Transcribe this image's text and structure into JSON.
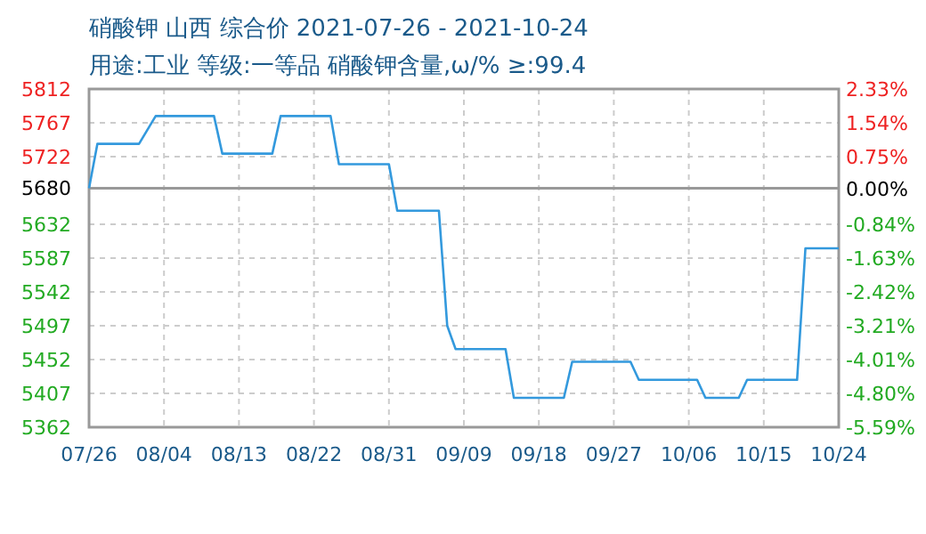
{
  "chart_data": {
    "type": "line",
    "title": "硝酸钾 山西 综合价 2021-07-26 - 2021-10-24",
    "subtitle": "用途:工业 等级:一等品 硝酸钾含量,ω/% ≥:99.4",
    "x": [
      "2021-07-26",
      "2021-07-27",
      "2021-08-01",
      "2021-08-03",
      "2021-08-10",
      "2021-08-11",
      "2021-08-17",
      "2021-08-18",
      "2021-08-24",
      "2021-08-25",
      "2021-08-31",
      "2021-09-01",
      "2021-09-06",
      "2021-09-07",
      "2021-09-08",
      "2021-09-14",
      "2021-09-15",
      "2021-09-21",
      "2021-09-22",
      "2021-09-29",
      "2021-09-30",
      "2021-10-07",
      "2021-10-08",
      "2021-10-12",
      "2021-10-13",
      "2021-10-19",
      "2021-10-20",
      "2021-10-24"
    ],
    "series": [
      {
        "color": "#3399dd",
        "values": [
          5680,
          5739,
          5739,
          5776,
          5776,
          5726,
          5726,
          5776,
          5776,
          5712,
          5712,
          5650,
          5650,
          5497,
          5466,
          5466,
          5401,
          5401,
          5449,
          5449,
          5425,
          5425,
          5401,
          5401,
          5425,
          5425,
          5600,
          5600
        ]
      }
    ],
    "xlim": [
      "2021-07-26",
      "2021-10-24"
    ],
    "xticks": [
      {
        "value": "2021-07-26",
        "label": "07/26"
      },
      {
        "value": "2021-08-04",
        "label": "08/04"
      },
      {
        "value": "2021-08-13",
        "label": "08/13"
      },
      {
        "value": "2021-08-22",
        "label": "08/22"
      },
      {
        "value": "2021-08-31",
        "label": "08/31"
      },
      {
        "value": "2021-09-09",
        "label": "09/09"
      },
      {
        "value": "2021-09-18",
        "label": "09/18"
      },
      {
        "value": "2021-09-27",
        "label": "09/27"
      },
      {
        "value": "2021-10-06",
        "label": "10/06"
      },
      {
        "value": "2021-10-15",
        "label": "10/15"
      },
      {
        "value": "2021-10-24",
        "label": "10/24"
      }
    ],
    "ylim": [
      5362,
      5812
    ],
    "yticks": [
      5812,
      5767,
      5722,
      5680,
      5632,
      5587,
      5542,
      5497,
      5452,
      5407,
      5362
    ],
    "y2lim": [
      -5.59,
      2.33
    ],
    "y2ticks": [
      {
        "value": 2.33,
        "label": "2.33%"
      },
      {
        "value": 1.54,
        "label": "1.54%"
      },
      {
        "value": 0.75,
        "label": "0.75%"
      },
      {
        "value": 0,
        "label": "0.00%"
      },
      {
        "value": -0.84,
        "label": "-0.84%"
      },
      {
        "value": -1.63,
        "label": "-1.63%"
      },
      {
        "value": -2.42,
        "label": "-2.42%"
      },
      {
        "value": -3.21,
        "label": "-3.21%"
      },
      {
        "value": -4.01,
        "label": "-4.01%"
      },
      {
        "value": -4.8,
        "label": "-4.80%"
      },
      {
        "value": -5.59,
        "label": "-5.59%"
      }
    ],
    "ref_lines": [
      {
        "axis": "y",
        "value": 5680,
        "color": "#999999"
      }
    ],
    "grid": true,
    "line_style": "solid",
    "marker": "none"
  }
}
